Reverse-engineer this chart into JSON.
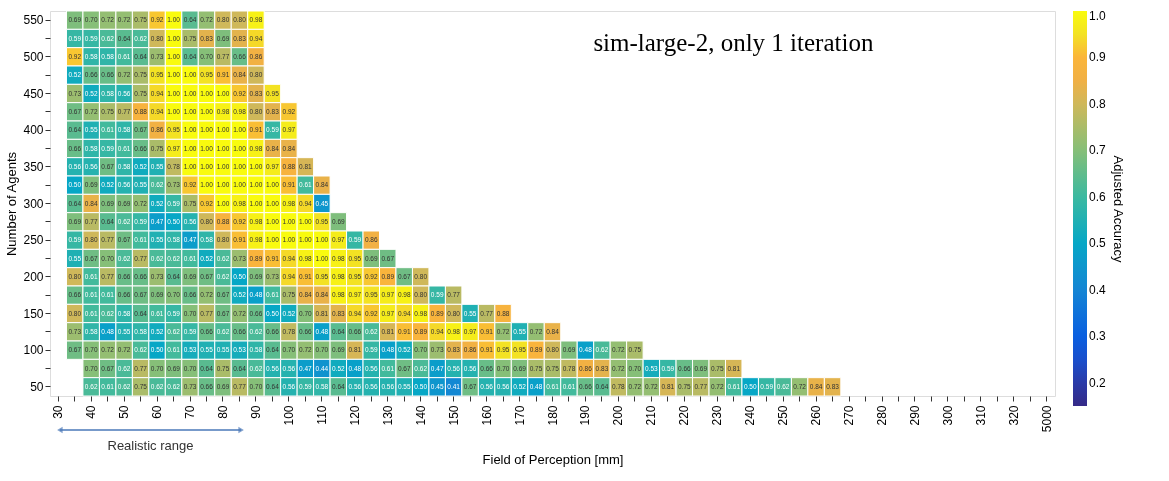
{
  "chart_data": {
    "type": "heatmap",
    "title": "sim-large-2, only 1 iteration",
    "xlabel": "Field of Perception [mm]",
    "ylabel": "Number of Agents",
    "clabel": "Adjusted Accuracy",
    "annotations": [
      "Realistic range"
    ],
    "data_labels": true,
    "cell_labels": [
      [
        null,
        "0.69",
        "0.70",
        "0.72",
        "0.72",
        "0.75",
        "0.92",
        "1.00",
        "0.64",
        "0.72",
        "0.80",
        "0.80",
        "0.98",
        null,
        null,
        null,
        null,
        null,
        null,
        null,
        null,
        null,
        null,
        null,
        null,
        null,
        null,
        null,
        null,
        null,
        null,
        null,
        null,
        null,
        null,
        null,
        null,
        null,
        null,
        null,
        null,
        null,
        null,
        null,
        null,
        null,
        null,
        null,
        null,
        null,
        null,
        null,
        null,
        null,
        null,
        null,
        null,
        null,
        null,
        null,
        null
      ],
      [
        null,
        "0.59",
        "0.59",
        "0.62",
        "0.64",
        "0.62",
        "0.80",
        "1.00",
        "0.75",
        "0.83",
        "0.69",
        "0.83",
        "0.94",
        null,
        null,
        null,
        null,
        null,
        null,
        null,
        null,
        null,
        null,
        null,
        null,
        null,
        null,
        null,
        null,
        null,
        null,
        null,
        null,
        null,
        null,
        null,
        null,
        null,
        null,
        null,
        null,
        null,
        null,
        null,
        null,
        null,
        null,
        null,
        null,
        null,
        null,
        null,
        null,
        null,
        null,
        null,
        null,
        null,
        null,
        null,
        null
      ],
      [
        null,
        "0.92",
        "0.58",
        "0.58",
        "0.61",
        "0.64",
        "0.73",
        "1.00",
        "0.64",
        "0.70",
        "0.77",
        "0.66",
        "0.86",
        null,
        null,
        null,
        null,
        null,
        null,
        null,
        null,
        null,
        null,
        null,
        null,
        null,
        null,
        null,
        null,
        null,
        null,
        null,
        null,
        null,
        null,
        null,
        null,
        null,
        null,
        null,
        null,
        null,
        null,
        null,
        null,
        null,
        null,
        null,
        null,
        null,
        null,
        null,
        null,
        null,
        null,
        null,
        null,
        null,
        null,
        null,
        null
      ],
      [
        null,
        "0.52",
        "0.66",
        "0.66",
        "0.72",
        "0.75",
        "0.95",
        "1.00",
        "1.00",
        "0.95",
        "0.91",
        "0.84",
        "0.80",
        null,
        null,
        null,
        null,
        null,
        null,
        null,
        null,
        null,
        null,
        null,
        null,
        null,
        null,
        null,
        null,
        null,
        null,
        null,
        null,
        null,
        null,
        null,
        null,
        null,
        null,
        null,
        null,
        null,
        null,
        null,
        null,
        null,
        null,
        null,
        null,
        null,
        null,
        null,
        null,
        null,
        null,
        null,
        null,
        null,
        null,
        null,
        null
      ],
      [
        null,
        "0.73",
        "0.52",
        "0.58",
        "0.56",
        "0.75",
        "0.94",
        "1.00",
        "1.00",
        "1.00",
        "1.00",
        "0.92",
        "0.83",
        "0.95",
        null,
        null,
        null,
        null,
        null,
        null,
        null,
        null,
        null,
        null,
        null,
        null,
        null,
        null,
        null,
        null,
        null,
        null,
        null,
        null,
        null,
        null,
        null,
        null,
        null,
        null,
        null,
        null,
        null,
        null,
        null,
        null,
        null,
        null,
        null,
        null,
        null,
        null,
        null,
        null,
        null,
        null,
        null,
        null,
        null,
        null,
        null
      ],
      [
        null,
        "0.67",
        "0.72",
        "0.75",
        "0.77",
        "0.88",
        "0.94",
        "1.00",
        "1.00",
        "1.00",
        "0.98",
        "0.98",
        "0.80",
        "0.83",
        "0.92",
        null,
        null,
        null,
        null,
        null,
        null,
        null,
        null,
        null,
        null,
        null,
        null,
        null,
        null,
        null,
        null,
        null,
        null,
        null,
        null,
        null,
        null,
        null,
        null,
        null,
        null,
        null,
        null,
        null,
        null,
        null,
        null,
        null,
        null,
        null,
        null,
        null,
        null,
        null,
        null,
        null,
        null,
        null,
        null,
        null,
        null
      ],
      [
        null,
        "0.64",
        "0.55",
        "0.61",
        "0.58",
        "0.67",
        "0.86",
        "0.95",
        "1.00",
        "1.00",
        "1.00",
        "1.00",
        "0.91",
        "0.59",
        "0.97",
        null,
        null,
        null,
        null,
        null,
        null,
        null,
        null,
        null,
        null,
        null,
        null,
        null,
        null,
        null,
        null,
        null,
        null,
        null,
        null,
        null,
        null,
        null,
        null,
        null,
        null,
        null,
        null,
        null,
        null,
        null,
        null,
        null,
        null,
        null,
        null,
        null,
        null,
        null,
        null,
        null,
        null,
        null,
        null,
        null,
        null
      ],
      [
        null,
        "0.66",
        "0.58",
        "0.59",
        "0.61",
        "0.66",
        "0.75",
        "0.97",
        "1.00",
        "1.00",
        "1.00",
        "1.00",
        "0.98",
        "0.84",
        "0.84",
        null,
        null,
        null,
        null,
        null,
        null,
        null,
        null,
        null,
        null,
        null,
        null,
        null,
        null,
        null,
        null,
        null,
        null,
        null,
        null,
        null,
        null,
        null,
        null,
        null,
        null,
        null,
        null,
        null,
        null,
        null,
        null,
        null,
        null,
        null,
        null,
        null,
        null,
        null,
        null,
        null,
        null,
        null,
        null,
        null,
        null
      ],
      [
        null,
        "0.56",
        "0.56",
        "0.67",
        "0.58",
        "0.52",
        "0.55",
        "0.78",
        "1.00",
        "1.00",
        "1.00",
        "1.00",
        "1.00",
        "0.97",
        "0.88",
        "0.81",
        null,
        null,
        null,
        null,
        null,
        null,
        null,
        null,
        null,
        null,
        null,
        null,
        null,
        null,
        null,
        null,
        null,
        null,
        null,
        null,
        null,
        null,
        null,
        null,
        null,
        null,
        null,
        null,
        null,
        null,
        null,
        null,
        null,
        null,
        null,
        null,
        null,
        null,
        null,
        null,
        null,
        null,
        null,
        null,
        null
      ],
      [
        null,
        "0.50",
        "0.69",
        "0.52",
        "0.56",
        "0.55",
        "0.62",
        "0.73",
        "0.92",
        "1.00",
        "1.00",
        "1.00",
        "1.00",
        "1.00",
        "0.91",
        "0.61",
        "0.84",
        null,
        null,
        null,
        null,
        null,
        null,
        null,
        null,
        null,
        null,
        null,
        null,
        null,
        null,
        null,
        null,
        null,
        null,
        null,
        null,
        null,
        null,
        null,
        null,
        null,
        null,
        null,
        null,
        null,
        null,
        null,
        null,
        null,
        null,
        null,
        null,
        null,
        null,
        null,
        null,
        null,
        null,
        null,
        null
      ],
      [
        null,
        "0.64",
        "0.84",
        "0.69",
        "0.69",
        "0.72",
        "0.52",
        "0.59",
        "0.75",
        "0.92",
        "1.00",
        "0.98",
        "1.00",
        "1.00",
        "0.98",
        "0.94",
        "0.45",
        null,
        null,
        null,
        null,
        null,
        null,
        null,
        null,
        null,
        null,
        null,
        null,
        null,
        null,
        null,
        null,
        null,
        null,
        null,
        null,
        null,
        null,
        null,
        null,
        null,
        null,
        null,
        null,
        null,
        null,
        null,
        null,
        null,
        null,
        null,
        null,
        null,
        null,
        null,
        null,
        null,
        null,
        null,
        null
      ],
      [
        null,
        "0.69",
        "0.77",
        "0.64",
        "0.62",
        "0.59",
        "0.47",
        "0.50",
        "0.56",
        "0.80",
        "0.88",
        "0.92",
        "0.98",
        "1.00",
        "1.00",
        "1.00",
        "0.95",
        "0.69",
        null,
        null,
        null,
        null,
        null,
        null,
        null,
        null,
        null,
        null,
        null,
        null,
        null,
        null,
        null,
        null,
        null,
        null,
        null,
        null,
        null,
        null,
        null,
        null,
        null,
        null,
        null,
        null,
        null,
        null,
        null,
        null,
        null,
        null,
        null,
        null,
        null,
        null,
        null,
        null,
        null,
        null,
        null
      ],
      [
        null,
        "0.59",
        "0.80",
        "0.77",
        "0.67",
        "0.61",
        "0.55",
        "0.58",
        "0.47",
        "0.58",
        "0.80",
        "0.91",
        "0.98",
        "1.00",
        "1.00",
        "1.00",
        "1.00",
        "0.97",
        "0.59",
        "0.86",
        null,
        null,
        null,
        null,
        null,
        null,
        null,
        null,
        null,
        null,
        null,
        null,
        null,
        null,
        null,
        null,
        null,
        null,
        null,
        null,
        null,
        null,
        null,
        null,
        null,
        null,
        null,
        null,
        null,
        null,
        null,
        null,
        null,
        null,
        null,
        null,
        null,
        null,
        null,
        null,
        null
      ],
      [
        null,
        "0.55",
        "0.67",
        "0.70",
        "0.62",
        "0.77",
        "0.62",
        "0.62",
        "0.61",
        "0.52",
        "0.62",
        "0.73",
        "0.89",
        "0.91",
        "0.94",
        "0.98",
        "1.00",
        "0.98",
        "0.95",
        "0.69",
        "0.67",
        null,
        null,
        null,
        null,
        null,
        null,
        null,
        null,
        null,
        null,
        null,
        null,
        null,
        null,
        null,
        null,
        null,
        null,
        null,
        null,
        null,
        null,
        null,
        null,
        null,
        null,
        null,
        null,
        null,
        null,
        null,
        null,
        null,
        null,
        null,
        null,
        null,
        null,
        null,
        null
      ],
      [
        null,
        "0.80",
        "0.61",
        "0.77",
        "0.66",
        "0.66",
        "0.73",
        "0.64",
        "0.69",
        "0.67",
        "0.62",
        "0.50",
        "0.69",
        "0.73",
        "0.94",
        "0.91",
        "0.95",
        "0.98",
        "0.95",
        "0.92",
        "0.89",
        "0.67",
        "0.80",
        null,
        null,
        null,
        null,
        null,
        null,
        null,
        null,
        null,
        null,
        null,
        null,
        null,
        null,
        null,
        null,
        null,
        null,
        null,
        null,
        null,
        null,
        null,
        null,
        null,
        null,
        null,
        null,
        null,
        null,
        null,
        null,
        null,
        null,
        null,
        null,
        null,
        null
      ],
      [
        null,
        "0.66",
        "0.61",
        "0.61",
        "0.66",
        "0.67",
        "0.69",
        "0.70",
        "0.66",
        "0.72",
        "0.67",
        "0.52",
        "0.48",
        "0.61",
        "0.75",
        "0.84",
        "0.84",
        "0.98",
        "0.97",
        "0.95",
        "0.97",
        "0.98",
        "0.80",
        "0.59",
        "0.77",
        null,
        null,
        null,
        null,
        null,
        null,
        null,
        null,
        null,
        null,
        null,
        null,
        null,
        null,
        null,
        null,
        null,
        null,
        null,
        null,
        null,
        null,
        null,
        null,
        null,
        null,
        null,
        null,
        null,
        null,
        null,
        null,
        null,
        null,
        null,
        null
      ],
      [
        null,
        "0.80",
        "0.61",
        "0.62",
        "0.58",
        "0.64",
        "0.61",
        "0.59",
        "0.70",
        "0.77",
        "0.67",
        "0.72",
        "0.66",
        "0.50",
        "0.52",
        "0.70",
        "0.81",
        "0.83",
        "0.94",
        "0.92",
        "0.97",
        "0.94",
        "0.98",
        "0.89",
        "0.80",
        "0.55",
        "0.77",
        "0.88",
        null,
        null,
        null,
        null,
        null,
        null,
        null,
        null,
        null,
        null,
        null,
        null,
        null,
        null,
        null,
        null,
        null,
        null,
        null,
        null,
        null,
        null,
        null,
        null,
        null,
        null,
        null,
        null,
        null,
        null,
        null,
        null,
        null
      ],
      [
        null,
        "0.73",
        "0.58",
        "0.48",
        "0.55",
        "0.58",
        "0.52",
        "0.62",
        "0.59",
        "0.66",
        "0.62",
        "0.66",
        "0.62",
        "0.66",
        "0.78",
        "0.66",
        "0.48",
        "0.64",
        "0.66",
        "0.62",
        "0.81",
        "0.91",
        "0.89",
        "0.94",
        "0.98",
        "0.97",
        "0.91",
        "0.72",
        "0.55",
        "0.72",
        "0.84",
        null,
        null,
        null,
        null,
        null,
        null,
        null,
        null,
        null,
        null,
        null,
        null,
        null,
        null,
        null,
        null,
        null,
        null,
        null,
        null,
        null,
        null,
        null,
        null,
        null,
        null,
        null,
        null,
        null,
        null
      ],
      [
        null,
        "0.67",
        "0.70",
        "0.72",
        "0.72",
        "0.62",
        "0.50",
        "0.61",
        "0.53",
        "0.55",
        "0.55",
        "0.53",
        "0.58",
        "0.64",
        "0.70",
        "0.72",
        "0.70",
        "0.69",
        "0.81",
        "0.59",
        "0.48",
        "0.52",
        "0.70",
        "0.73",
        "0.83",
        "0.86",
        "0.91",
        "0.95",
        "0.95",
        "0.89",
        "0.80",
        "0.69",
        "0.48",
        "0.62",
        "0.72",
        "0.75",
        null,
        null,
        null,
        null,
        null,
        null,
        null,
        null,
        null,
        null,
        null,
        null,
        null,
        null,
        null,
        null,
        null,
        null,
        null,
        null,
        null,
        null,
        null,
        null,
        null
      ],
      [
        null,
        null,
        "0.70",
        "0.67",
        "0.62",
        "0.77",
        "0.70",
        "0.69",
        "0.70",
        "0.64",
        "0.75",
        "0.64",
        "0.62",
        "0.56",
        "0.56",
        "0.47",
        "0.44",
        "0.52",
        "0.48",
        "0.56",
        "0.61",
        "0.67",
        "0.62",
        "0.47",
        "0.56",
        "0.56",
        "0.66",
        "0.70",
        "0.69",
        "0.75",
        "0.75",
        "0.78",
        "0.86",
        "0.83",
        "0.72",
        "0.70",
        "0.53",
        "0.59",
        "0.66",
        "0.69",
        "0.75",
        "0.81",
        null,
        null,
        null,
        null,
        null,
        null,
        null,
        null,
        null,
        null,
        null,
        null,
        null,
        null,
        null,
        null,
        null,
        null,
        null
      ],
      [
        null,
        null,
        "0.62",
        "0.61",
        "0.62",
        "0.75",
        "0.62",
        "0.62",
        "0.73",
        "0.66",
        "0.69",
        "0.77",
        "0.70",
        "0.64",
        "0.56",
        "0.59",
        "0.58",
        "0.64",
        "0.56",
        "0.56",
        "0.56",
        "0.55",
        "0.50",
        "0.45",
        "0.41",
        "0.67",
        "0.56",
        "0.56",
        "0.52",
        "0.48",
        "0.61",
        "0.61",
        "0.66",
        "0.64",
        "0.78",
        "0.72",
        "0.72",
        "0.81",
        "0.75",
        "0.77",
        "0.72",
        "0.61",
        "0.50",
        "0.59",
        "0.62",
        "0.72",
        "0.84",
        "0.83",
        null,
        null,
        null,
        null,
        null,
        null,
        null,
        null,
        null,
        null,
        null,
        null,
        null
      ]
    ],
    "clim": [
      0.15,
      1.0
    ],
    "cticks": [
      0.2,
      0.3,
      0.4,
      0.5,
      0.6,
      0.7,
      0.8,
      0.9,
      {
        "value": 1.0,
        "label": "1.0"
      }
    ],
    "categories": [
      "30",
      null,
      "40",
      null,
      "50",
      null,
      "60",
      null,
      "70",
      null,
      "80",
      null,
      "90",
      null,
      "100",
      null,
      "110",
      null,
      "120",
      null,
      "130",
      null,
      "140",
      null,
      "150",
      null,
      "160",
      null,
      "170",
      null,
      "180",
      null,
      "190",
      null,
      "200",
      null,
      "210",
      null,
      "220",
      null,
      "230",
      null,
      "240",
      null,
      "250",
      null,
      "260",
      null,
      "270",
      null,
      "280",
      null,
      "290",
      null,
      "300",
      null,
      "310",
      null,
      "320",
      null,
      "5000"
    ],
    "y_categories": [
      "550",
      null,
      "500",
      null,
      "450",
      null,
      "400",
      null,
      "350",
      null,
      "300",
      null,
      "250",
      null,
      "200",
      null,
      "150",
      null,
      "100",
      null,
      "50"
    ],
    "cells": [
      [
        null,
        0.69,
        0.7,
        0.72,
        0.72,
        0.75,
        0.92,
        1.0,
        0.64,
        0.72,
        0.8,
        0.8,
        0.98,
        null,
        null,
        null,
        null,
        null,
        null,
        null,
        null,
        null,
        null,
        null,
        null,
        null,
        null,
        null,
        null,
        null,
        null,
        null,
        null,
        null,
        null,
        null,
        null,
        null,
        null,
        null,
        null,
        null,
        null,
        null,
        null,
        null,
        null,
        null,
        null,
        null,
        null,
        null,
        null,
        null,
        null,
        null,
        null,
        null,
        null,
        null,
        null
      ],
      [
        null,
        0.59,
        0.59,
        0.62,
        0.64,
        0.62,
        0.8,
        1.0,
        0.75,
        0.83,
        0.69,
        0.83,
        0.94,
        null,
        null,
        null,
        null,
        null,
        null,
        null,
        null,
        null,
        null,
        null,
        null,
        null,
        null,
        null,
        null,
        null,
        null,
        null,
        null,
        null,
        null,
        null,
        null,
        null,
        null,
        null,
        null,
        null,
        null,
        null,
        null,
        null,
        null,
        null,
        null,
        null,
        null,
        null,
        null,
        null,
        null,
        null,
        null,
        null,
        null,
        null,
        null
      ],
      [
        null,
        0.92,
        0.58,
        0.58,
        0.61,
        0.64,
        0.73,
        1.0,
        0.64,
        0.7,
        0.77,
        0.66,
        0.86,
        null,
        null,
        null,
        null,
        null,
        null,
        null,
        null,
        null,
        null,
        null,
        null,
        null,
        null,
        null,
        null,
        null,
        null,
        null,
        null,
        null,
        null,
        null,
        null,
        null,
        null,
        null,
        null,
        null,
        null,
        null,
        null,
        null,
        null,
        null,
        null,
        null,
        null,
        null,
        null,
        null,
        null,
        null,
        null,
        null,
        null,
        null,
        null
      ],
      [
        null,
        0.52,
        0.66,
        0.66,
        0.72,
        0.75,
        0.95,
        1.0,
        1.0,
        0.95,
        0.91,
        0.84,
        0.8,
        null,
        null,
        null,
        null,
        null,
        null,
        null,
        null,
        null,
        null,
        null,
        null,
        null,
        null,
        null,
        null,
        null,
        null,
        null,
        null,
        null,
        null,
        null,
        null,
        null,
        null,
        null,
        null,
        null,
        null,
        null,
        null,
        null,
        null,
        null,
        null,
        null,
        null,
        null,
        null,
        null,
        null,
        null,
        null,
        null,
        null,
        null,
        null
      ],
      [
        null,
        0.73,
        0.52,
        0.58,
        0.56,
        0.75,
        0.94,
        1.0,
        1.0,
        1.0,
        1.0,
        0.92,
        0.83,
        0.95,
        null,
        null,
        null,
        null,
        null,
        null,
        null,
        null,
        null,
        null,
        null,
        null,
        null,
        null,
        null,
        null,
        null,
        null,
        null,
        null,
        null,
        null,
        null,
        null,
        null,
        null,
        null,
        null,
        null,
        null,
        null,
        null,
        null,
        null,
        null,
        null,
        null,
        null,
        null,
        null,
        null,
        null,
        null,
        null,
        null,
        null,
        null
      ],
      [
        null,
        0.67,
        0.72,
        0.75,
        0.77,
        0.88,
        0.94,
        1.0,
        1.0,
        1.0,
        0.98,
        0.98,
        0.8,
        0.83,
        0.92,
        null,
        null,
        null,
        null,
        null,
        null,
        null,
        null,
        null,
        null,
        null,
        null,
        null,
        null,
        null,
        null,
        null,
        null,
        null,
        null,
        null,
        null,
        null,
        null,
        null,
        null,
        null,
        null,
        null,
        null,
        null,
        null,
        null,
        null,
        null,
        null,
        null,
        null,
        null,
        null,
        null,
        null,
        null,
        null,
        null,
        null
      ],
      [
        null,
        0.64,
        0.55,
        0.61,
        0.58,
        0.67,
        0.86,
        0.95,
        1.0,
        1.0,
        1.0,
        1.0,
        0.91,
        0.59,
        0.97,
        null,
        null,
        null,
        null,
        null,
        null,
        null,
        null,
        null,
        null,
        null,
        null,
        null,
        null,
        null,
        null,
        null,
        null,
        null,
        null,
        null,
        null,
        null,
        null,
        null,
        null,
        null,
        null,
        null,
        null,
        null,
        null,
        null,
        null,
        null,
        null,
        null,
        null,
        null,
        null,
        null,
        null,
        null,
        null,
        null,
        null
      ],
      [
        null,
        0.66,
        0.58,
        0.59,
        0.61,
        0.66,
        0.75,
        0.97,
        1.0,
        1.0,
        1.0,
        1.0,
        0.98,
        0.84,
        0.84,
        null,
        null,
        null,
        null,
        null,
        null,
        null,
        null,
        null,
        null,
        null,
        null,
        null,
        null,
        null,
        null,
        null,
        null,
        null,
        null,
        null,
        null,
        null,
        null,
        null,
        null,
        null,
        null,
        null,
        null,
        null,
        null,
        null,
        null,
        null,
        null,
        null,
        null,
        null,
        null,
        null,
        null,
        null,
        null,
        null,
        null
      ],
      [
        null,
        0.56,
        0.56,
        0.67,
        0.58,
        0.52,
        0.55,
        0.78,
        1.0,
        1.0,
        1.0,
        1.0,
        1.0,
        0.97,
        0.88,
        0.81,
        null,
        null,
        null,
        null,
        null,
        null,
        null,
        null,
        null,
        null,
        null,
        null,
        null,
        null,
        null,
        null,
        null,
        null,
        null,
        null,
        null,
        null,
        null,
        null,
        null,
        null,
        null,
        null,
        null,
        null,
        null,
        null,
        null,
        null,
        null,
        null,
        null,
        null,
        null,
        null,
        null,
        null,
        null,
        null,
        null
      ],
      [
        null,
        0.5,
        0.69,
        0.52,
        0.56,
        0.55,
        0.62,
        0.73,
        0.92,
        1.0,
        1.0,
        1.0,
        1.0,
        1.0,
        0.91,
        0.61,
        0.84,
        null,
        null,
        null,
        null,
        null,
        null,
        null,
        null,
        null,
        null,
        null,
        null,
        null,
        null,
        null,
        null,
        null,
        null,
        null,
        null,
        null,
        null,
        null,
        null,
        null,
        null,
        null,
        null,
        null,
        null,
        null,
        null,
        null,
        null,
        null,
        null,
        null,
        null,
        null,
        null,
        null,
        null,
        null,
        null
      ],
      [
        null,
        0.64,
        0.84,
        0.69,
        0.69,
        0.72,
        0.52,
        0.59,
        0.75,
        0.92,
        1.0,
        0.98,
        1.0,
        1.0,
        0.98,
        0.94,
        0.45,
        null,
        null,
        null,
        null,
        null,
        null,
        null,
        null,
        null,
        null,
        null,
        null,
        null,
        null,
        null,
        null,
        null,
        null,
        null,
        null,
        null,
        null,
        null,
        null,
        null,
        null,
        null,
        null,
        null,
        null,
        null,
        null,
        null,
        null,
        null,
        null,
        null,
        null,
        null,
        null,
        null,
        null,
        null,
        null
      ],
      [
        null,
        0.69,
        0.77,
        0.64,
        0.62,
        0.59,
        0.47,
        0.5,
        0.56,
        0.8,
        0.88,
        0.92,
        0.98,
        1.0,
        1.0,
        1.0,
        0.95,
        0.69,
        null,
        null,
        null,
        null,
        null,
        null,
        null,
        null,
        null,
        null,
        null,
        null,
        null,
        null,
        null,
        null,
        null,
        null,
        null,
        null,
        null,
        null,
        null,
        null,
        null,
        null,
        null,
        null,
        null,
        null,
        null,
        null,
        null,
        null,
        null,
        null,
        null,
        null,
        null,
        null,
        null,
        null,
        null
      ],
      [
        null,
        0.59,
        0.8,
        0.77,
        0.67,
        0.61,
        0.55,
        0.58,
        0.47,
        0.58,
        0.8,
        0.91,
        0.98,
        1.0,
        1.0,
        1.0,
        1.0,
        0.97,
        0.59,
        0.86,
        null,
        null,
        null,
        null,
        null,
        null,
        null,
        null,
        null,
        null,
        null,
        null,
        null,
        null,
        null,
        null,
        null,
        null,
        null,
        null,
        null,
        null,
        null,
        null,
        null,
        null,
        null,
        null,
        null,
        null,
        null,
        null,
        null,
        null,
        null,
        null,
        null,
        null,
        null,
        null,
        null
      ],
      [
        null,
        0.55,
        0.67,
        0.7,
        0.62,
        0.77,
        0.62,
        0.62,
        0.61,
        0.52,
        0.62,
        0.73,
        0.89,
        0.91,
        0.94,
        0.98,
        1.0,
        0.98,
        0.95,
        0.69,
        0.67,
        null,
        null,
        null,
        null,
        null,
        null,
        null,
        null,
        null,
        null,
        null,
        null,
        null,
        null,
        null,
        null,
        null,
        null,
        null,
        null,
        null,
        null,
        null,
        null,
        null,
        null,
        null,
        null,
        null,
        null,
        null,
        null,
        null,
        null,
        null,
        null,
        null,
        null,
        null,
        null
      ],
      [
        null,
        0.8,
        0.61,
        0.77,
        0.66,
        0.66,
        0.73,
        0.64,
        0.69,
        0.67,
        0.62,
        0.5,
        0.69,
        0.73,
        0.94,
        0.91,
        0.95,
        0.98,
        0.95,
        0.92,
        0.89,
        0.67,
        0.8,
        null,
        null,
        null,
        null,
        null,
        null,
        null,
        null,
        null,
        null,
        null,
        null,
        null,
        null,
        null,
        null,
        null,
        null,
        null,
        null,
        null,
        null,
        null,
        null,
        null,
        null,
        null,
        null,
        null,
        null,
        null,
        null,
        null,
        null,
        null,
        null,
        null,
        null
      ],
      [
        null,
        0.66,
        0.61,
        0.61,
        0.66,
        0.67,
        0.69,
        0.7,
        0.66,
        0.72,
        0.67,
        0.52,
        0.48,
        0.61,
        0.75,
        0.84,
        0.84,
        0.98,
        0.97,
        0.95,
        0.97,
        0.98,
        0.8,
        0.59,
        0.77,
        null,
        null,
        null,
        null,
        null,
        null,
        null,
        null,
        null,
        null,
        null,
        null,
        null,
        null,
        null,
        null,
        null,
        null,
        null,
        null,
        null,
        null,
        null,
        null,
        null,
        null,
        null,
        null,
        null,
        null,
        null,
        null,
        null,
        null,
        null,
        null
      ],
      [
        null,
        0.8,
        0.61,
        0.62,
        0.58,
        0.64,
        0.61,
        0.59,
        0.7,
        0.77,
        0.67,
        0.72,
        0.66,
        0.5,
        0.52,
        0.7,
        0.81,
        0.83,
        0.94,
        0.92,
        0.97,
        0.94,
        0.98,
        0.89,
        0.8,
        0.55,
        0.77,
        0.88,
        null,
        null,
        null,
        null,
        null,
        null,
        null,
        null,
        null,
        null,
        null,
        null,
        null,
        null,
        null,
        null,
        null,
        null,
        null,
        null,
        null,
        null,
        null,
        null,
        null,
        null,
        null,
        null,
        null,
        null,
        null,
        null,
        null
      ],
      [
        null,
        0.73,
        0.58,
        0.48,
        0.55,
        0.58,
        0.52,
        0.62,
        0.59,
        0.66,
        0.62,
        0.66,
        0.62,
        0.66,
        0.78,
        0.66,
        0.48,
        0.64,
        0.66,
        0.62,
        0.81,
        0.91,
        0.89,
        0.94,
        0.98,
        0.97,
        0.91,
        0.72,
        0.55,
        0.72,
        0.84,
        null,
        null,
        null,
        null,
        null,
        null,
        null,
        null,
        null,
        null,
        null,
        null,
        null,
        null,
        null,
        null,
        null,
        null,
        null,
        null,
        null,
        null,
        null,
        null,
        null,
        null,
        null,
        null,
        null,
        null
      ],
      [
        null,
        0.67,
        0.7,
        0.72,
        0.72,
        0.62,
        0.5,
        0.61,
        0.53,
        0.55,
        0.55,
        0.53,
        0.58,
        0.64,
        0.7,
        0.72,
        0.7,
        0.69,
        0.81,
        0.59,
        0.48,
        0.52,
        0.7,
        0.73,
        0.83,
        0.86,
        0.91,
        0.95,
        0.95,
        0.89,
        0.8,
        0.69,
        0.48,
        0.62,
        0.72,
        0.75,
        null,
        null,
        null,
        null,
        null,
        null,
        null,
        null,
        null,
        null,
        null,
        null,
        null,
        null,
        null,
        null,
        null,
        null,
        null,
        null,
        null,
        null,
        null,
        null,
        null
      ],
      [
        null,
        null,
        0.7,
        0.67,
        0.62,
        0.77,
        0.7,
        0.69,
        0.7,
        0.64,
        0.75,
        0.64,
        0.62,
        0.56,
        0.56,
        0.47,
        0.44,
        0.52,
        0.48,
        0.56,
        0.61,
        0.67,
        0.62,
        0.47,
        0.56,
        0.56,
        0.66,
        0.7,
        0.69,
        0.75,
        0.75,
        0.78,
        0.86,
        0.83,
        0.72,
        0.7,
        0.53,
        0.59,
        0.66,
        0.69,
        0.75,
        0.81,
        null,
        null,
        null,
        null,
        null,
        null,
        null,
        null,
        null,
        null,
        null,
        null,
        null,
        null,
        null,
        null,
        null,
        null,
        null
      ],
      [
        null,
        null,
        0.62,
        0.61,
        0.62,
        0.75,
        0.62,
        0.62,
        0.73,
        0.66,
        0.69,
        0.77,
        0.7,
        0.64,
        0.56,
        0.59,
        0.58,
        0.64,
        0.56,
        0.56,
        0.56,
        0.55,
        0.5,
        0.45,
        0.41,
        0.67,
        0.56,
        0.56,
        0.52,
        0.48,
        0.61,
        0.61,
        0.66,
        0.64,
        0.78,
        0.72,
        0.72,
        0.81,
        0.75,
        0.77,
        0.72,
        0.61,
        0.5,
        0.59,
        0.62,
        0.72,
        0.84,
        0.83,
        null,
        null,
        null,
        null,
        null,
        null,
        null,
        null,
        null,
        null,
        null,
        null,
        null
      ]
    ]
  }
}
